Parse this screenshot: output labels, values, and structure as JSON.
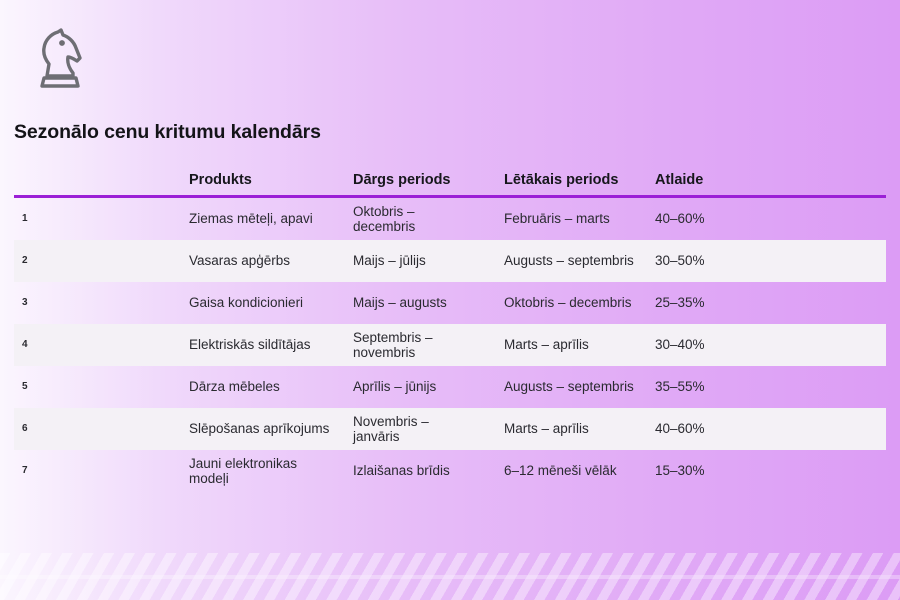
{
  "title": "Sezonālo cenu kritumu kalendārs",
  "logo_icon": "chess-knight-icon",
  "colors": {
    "accent": "#9b1fd6",
    "row_alt": "#f4f1f6",
    "text": "#1f1f24"
  },
  "table": {
    "headers": [
      "Produkts",
      "Dārgs periods",
      "Lētākais periods",
      "Atlaide"
    ],
    "rows": [
      {
        "n": "1",
        "product": "Ziemas mēteļi, apavi",
        "expensive": "Oktobris – decembris",
        "cheapest": "Februāris – marts",
        "discount": "40–60%"
      },
      {
        "n": "2",
        "product": "Vasaras apģērbs",
        "expensive": "Maijs – jūlijs",
        "cheapest": "Augusts – septembris",
        "discount": "30–50%"
      },
      {
        "n": "3",
        "product": "Gaisa kondicionieri",
        "expensive": "Maijs – augusts",
        "cheapest": "Oktobris – decembris",
        "discount": "25–35%"
      },
      {
        "n": "4",
        "product": "Elektriskās sildītājas",
        "expensive": "Septembris – novembris",
        "cheapest": "Marts – aprīlis",
        "discount": "30–40%"
      },
      {
        "n": "5",
        "product": "Dārza mēbeles",
        "expensive": "Aprīlis – jūnijs",
        "cheapest": "Augusts – septembris",
        "discount": "35–55%"
      },
      {
        "n": "6",
        "product": "Slēpošanas aprīkojums",
        "expensive": "Novembris – janvāris",
        "cheapest": "Marts – aprīlis",
        "discount": "40–60%"
      },
      {
        "n": "7",
        "product": "Jauni elektronikas modeļi",
        "expensive": "Izlaišanas brīdis",
        "cheapest": "6–12 mēneši vēlāk",
        "discount": "15–30%"
      }
    ]
  }
}
